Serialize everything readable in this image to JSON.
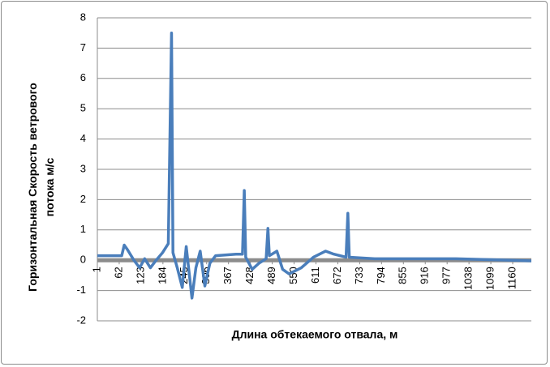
{
  "chart_data": {
    "type": "line",
    "x_label": "Длина обтекаемого отвала, м",
    "y_label": "Горизонтальная Скорость ветрового потока м/с",
    "x": [
      1,
      69,
      76,
      85,
      103,
      119,
      133,
      149,
      165,
      183,
      199,
      208,
      212,
      224,
      238,
      249,
      265,
      276,
      288,
      301,
      315,
      331,
      388,
      406,
      411,
      415,
      433,
      452,
      472,
      477,
      481,
      502,
      518,
      536,
      570,
      604,
      638,
      661,
      695,
      700,
      704,
      775,
      1002,
      1212
    ],
    "values": [
      0.15,
      0.15,
      0.5,
      0.35,
      0.0,
      -0.25,
      0.05,
      -0.25,
      0.0,
      0.25,
      0.55,
      7.5,
      0.25,
      -0.25,
      -0.9,
      0.45,
      -1.25,
      -0.25,
      0.3,
      -0.85,
      -0.1,
      0.15,
      0.2,
      0.2,
      2.3,
      0.1,
      -0.3,
      -0.1,
      0.05,
      1.05,
      0.15,
      0.3,
      -0.3,
      -0.45,
      -0.25,
      0.1,
      0.3,
      0.2,
      0.1,
      1.55,
      0.1,
      0.05,
      0.05,
      -0.02
    ],
    "color": "#4a7ebb",
    "xlim": [
      1,
      1212
    ],
    "xticks": [
      1,
      62,
      123,
      184,
      245,
      306,
      367,
      428,
      489,
      550,
      611,
      672,
      733,
      794,
      855,
      916,
      977,
      1038,
      1099,
      1160
    ],
    "ylim": [
      -2,
      8
    ],
    "yticks": [
      -2,
      -1,
      0,
      1,
      2,
      3,
      4,
      5,
      6,
      7,
      8
    ],
    "grid": true
  }
}
